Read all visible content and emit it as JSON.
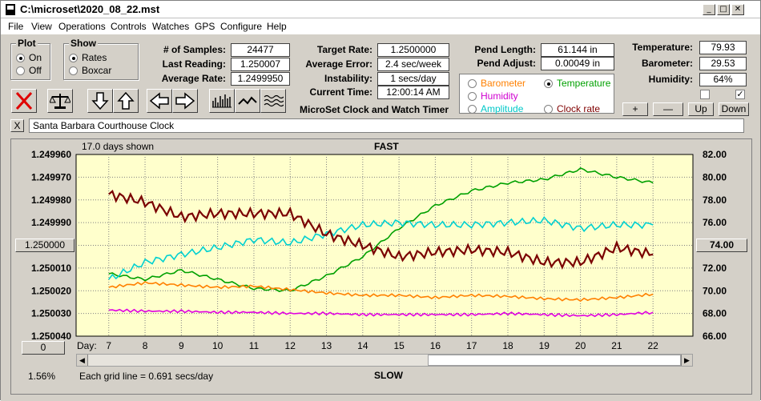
{
  "window": {
    "title": "C:\\microset\\2020_08_22.mst"
  },
  "menu": [
    "File",
    "View",
    "Operations",
    "Controls",
    "Watches",
    "GPS",
    "Configure",
    "Help"
  ],
  "plot": {
    "title": "Plot",
    "on": "On",
    "off": "Off",
    "selected": "On"
  },
  "show": {
    "title": "Show",
    "rates": "Rates",
    "boxcar": "Boxcar",
    "selected": "Rates"
  },
  "stats": {
    "samples_label": "# of Samples:",
    "samples": "24477",
    "last_label": "Last Reading:",
    "last": "1.250007",
    "avg_label": "Average Rate:",
    "avg": "1.2499950",
    "target_label": "Target Rate:",
    "target": "1.2500000",
    "error_label": "Average Error:",
    "error": "2.4 sec/week",
    "instab_label": "Instability:",
    "instab": "1 secs/day",
    "time_label": "Current Time:",
    "time": "12:00:14 AM",
    "pendlen_label": "Pend Length:",
    "pendlen": "61.144 in",
    "pendadj_label": "Pend Adjust:",
    "pendadj": "0.00049 in",
    "temp_label": "Temperature:",
    "temp": "79.93",
    "baro_label": "Barometer:",
    "baro": "29.53",
    "hum_label": "Humidity:",
    "hum": "64%"
  },
  "timer_title": "MicroSet Clock and Watch Timer",
  "sensors": [
    {
      "name": "Barometer",
      "color": "#ff8000",
      "selected": false
    },
    {
      "name": "Temperature",
      "color": "#00a000",
      "selected": true
    },
    {
      "name": "Humidity",
      "color": "#d000d0",
      "selected": false
    },
    {
      "name": "Clock rate",
      "color": "#800000",
      "selected": false
    },
    {
      "name": "Amplitude",
      "color": "#00c8c8",
      "selected": false
    }
  ],
  "controls": {
    "plus": "+",
    "minus": "—",
    "up": "Up",
    "down": "Down",
    "close": "X"
  },
  "checkboxes": [
    {
      "checked": false
    },
    {
      "checked": true
    }
  ],
  "clock_name": "Santa Barbara Courthouse Clock",
  "chart": {
    "days_shown": "17.0 days shown",
    "fast": "FAST",
    "slow": "SLOW",
    "left_center_button": "1.250000",
    "right_center_button": "74.00",
    "zero_button": "0",
    "percent": "1.56%",
    "grid_note": "Each grid line = 0.691 secs/day",
    "day_label": "Day:"
  },
  "chart_data": {
    "type": "line",
    "x": [
      7,
      8,
      9,
      10,
      11,
      12,
      13,
      14,
      15,
      16,
      17,
      18,
      19,
      20,
      21,
      22
    ],
    "x_ticks": [
      "7",
      "8",
      "9",
      "10",
      "11",
      "12",
      "13",
      "14",
      "15",
      "16",
      "17",
      "18",
      "19",
      "20",
      "21",
      "22"
    ],
    "y_left_ticks": [
      "1.249960",
      "1.249970",
      "1.249980",
      "1.249990",
      "1.250000",
      "1.250010",
      "1.250020",
      "1.250030",
      "1.250040"
    ],
    "y_right_ticks": [
      "82.00",
      "80.00",
      "78.00",
      "76.00",
      "74.00",
      "72.00",
      "70.00",
      "68.00",
      "66.00"
    ],
    "ylim_left": [
      1.24996,
      1.25004
    ],
    "ylim_right": [
      66,
      82
    ],
    "series": [
      {
        "color": "#00a000",
        "values": [
          71.5,
          71,
          71.8,
          71,
          70.2,
          70,
          71.3,
          73,
          75.5,
          77.5,
          78.8,
          79.5,
          79.8,
          80.7,
          80,
          79.5
        ]
      },
      {
        "color": "#00d0d0",
        "values": [
          71,
          72.5,
          73.2,
          73.8,
          74.5,
          74.2,
          75,
          75.8,
          76,
          75.8,
          75.8,
          76,
          76.2,
          75.5,
          75.8,
          75.8
        ]
      },
      {
        "color": "#7a0000",
        "values": [
          78.5,
          77.8,
          76.5,
          76.8,
          76.8,
          76.8,
          75,
          74,
          73,
          73.4,
          73.6,
          73.4,
          72.5,
          72.5,
          73.8,
          73.2
        ]
      },
      {
        "color": "#ff8000",
        "values": [
          70.3,
          70.7,
          70.5,
          70.3,
          70.4,
          70.1,
          69.8,
          69.6,
          69.6,
          69.4,
          69.6,
          69.5,
          69.3,
          69.2,
          69.4,
          69.7
        ]
      },
      {
        "color": "#e000e0",
        "values": [
          68.3,
          68.2,
          68.2,
          68.1,
          68.1,
          68.0,
          68.0,
          67.9,
          67.9,
          67.9,
          67.9,
          68.0,
          67.9,
          67.8,
          67.9,
          68.1
        ]
      }
    ]
  }
}
